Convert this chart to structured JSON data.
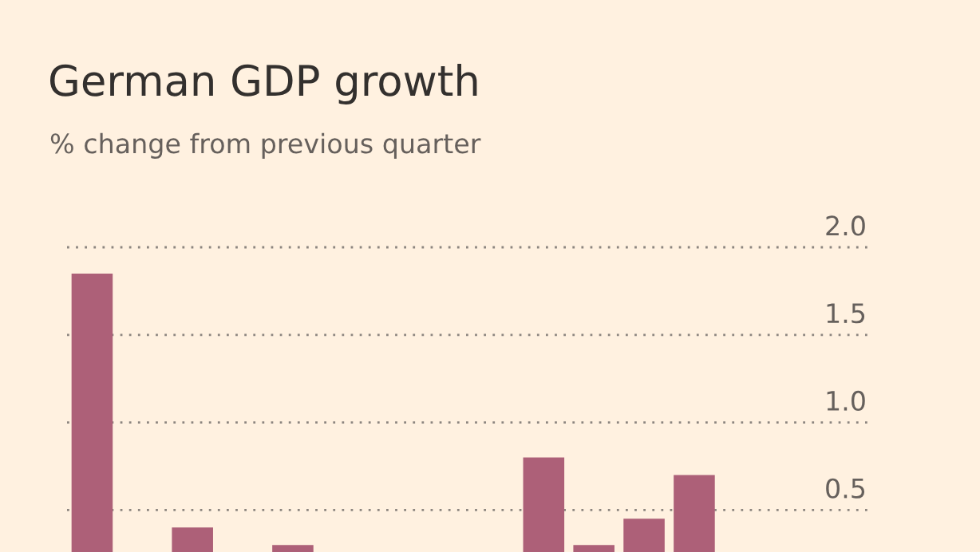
{
  "chart_data": {
    "type": "bar",
    "title": "German GDP growth",
    "subtitle": "% change from previous quarter",
    "categories": [
      null,
      null,
      null,
      null,
      null,
      null,
      null,
      null,
      null,
      null,
      null,
      null,
      null,
      null,
      null,
      null
    ],
    "values": [
      1.85,
      null,
      0.4,
      null,
      0.3,
      null,
      null,
      null,
      null,
      0.8,
      0.3,
      0.45,
      0.7,
      null,
      null,
      null
    ],
    "color": "#ad6078",
    "ylim": [
      0.26,
      2.0
    ],
    "yticks": [
      {
        "value": 0.5,
        "label": "0.5"
      },
      {
        "value": 1.0,
        "label": "1.0"
      },
      {
        "value": 1.5,
        "label": "1.5"
      },
      {
        "value": 2.0,
        "label": "2.0"
      }
    ],
    "grid": "y",
    "tick_labels": "y"
  }
}
